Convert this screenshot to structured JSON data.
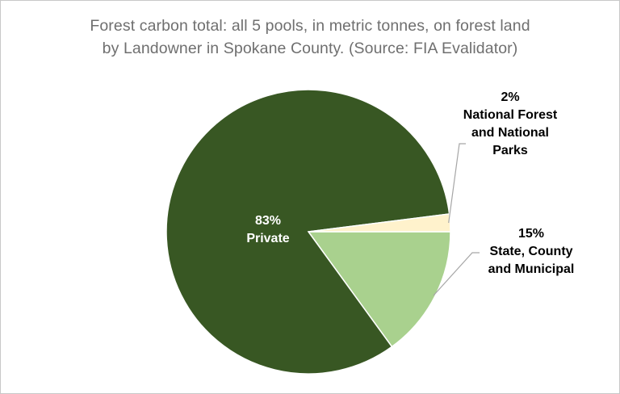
{
  "chart_data": {
    "type": "pie",
    "title_lines": [
      "Forest carbon total: all 5 pools, in metric tonnes, on forest land",
      "by Landowner in Spokane County.  (Source: FIA Evalidator)"
    ],
    "categories": [
      "Private",
      "National Forest and National Parks",
      "State, County and Municipal"
    ],
    "values": [
      83,
      2,
      15
    ],
    "slices": [
      {
        "name": "Private",
        "value": 83,
        "percent_label": "83%",
        "label_lines": [
          "Private"
        ],
        "color": "#385723",
        "text_color": "#ffffff"
      },
      {
        "name": "National Forest and National Parks",
        "value": 2,
        "percent_label": "2%",
        "label_lines": [
          "National Forest",
          "and National",
          "Parks"
        ],
        "color": "#fff2cc",
        "text_color": "#000000"
      },
      {
        "name": "State, County and Municipal",
        "value": 15,
        "percent_label": "15%",
        "label_lines": [
          "State, County",
          "and Municipal"
        ],
        "color": "#a9d18e",
        "text_color": "#000000"
      }
    ]
  }
}
